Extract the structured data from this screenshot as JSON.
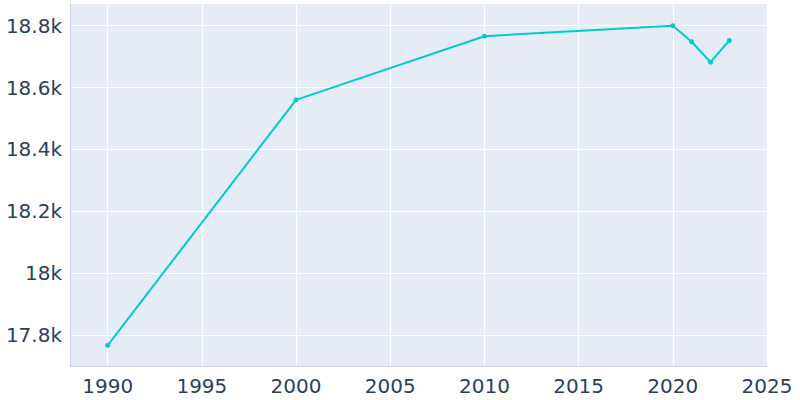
{
  "chart_data": {
    "type": "line",
    "x": [
      1990,
      2000,
      2010,
      2020,
      2021,
      2022,
      2023
    ],
    "values": [
      17767,
      18560,
      18766,
      18800,
      18748,
      18682,
      18752
    ],
    "color": "#00cccc",
    "marker": "circle",
    "xlim": [
      1988,
      2025
    ],
    "xticks": [
      1990,
      1995,
      2000,
      2005,
      2010,
      2015,
      2020,
      2025
    ],
    "ylim": [
      17700,
      18870
    ],
    "yticks": [
      {
        "value": 17800,
        "label": "17.8k"
      },
      {
        "value": 18000,
        "label": "18k"
      },
      {
        "value": 18200,
        "label": "18.2k"
      },
      {
        "value": 18400,
        "label": "18.4k"
      },
      {
        "value": 18600,
        "label": "18.6k"
      },
      {
        "value": 18800,
        "label": "18.8k"
      }
    ],
    "grid": true
  }
}
